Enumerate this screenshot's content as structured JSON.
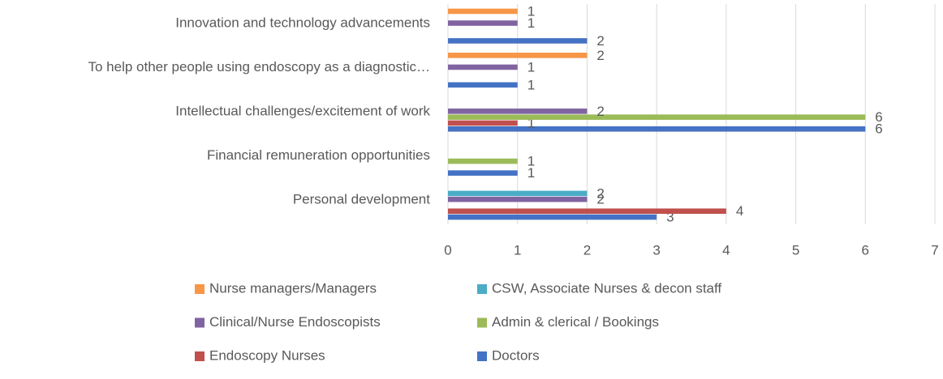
{
  "chart_data": {
    "type": "barh",
    "categories": [
      "Innovation and technology advancements",
      "To help other people using endoscopy as a diagnostic…",
      "Intellectual challenges/excitement of work",
      "Financial remuneration opportunities",
      "Personal development"
    ],
    "series": [
      {
        "name": "Doctors",
        "color": "#4472c4",
        "values": [
          2,
          1,
          6,
          1,
          3
        ]
      },
      {
        "name": "Endoscopy Nurses",
        "color": "#c0504d",
        "values": [
          null,
          null,
          1,
          null,
          4
        ]
      },
      {
        "name": "Admin & clerical / Bookings",
        "color": "#9bbb59",
        "values": [
          null,
          null,
          6,
          1,
          null
        ]
      },
      {
        "name": "Clinical/Nurse Endoscopists",
        "color": "#8064a2",
        "values": [
          1,
          1,
          2,
          null,
          2
        ]
      },
      {
        "name": "CSW, Associate Nurses & decon staff",
        "color": "#4bacc6",
        "values": [
          null,
          null,
          null,
          null,
          2
        ]
      },
      {
        "name": "Nurse managers/Managers",
        "color": "#f79646",
        "values": [
          1,
          2,
          null,
          null,
          null
        ]
      }
    ],
    "xlim": [
      0,
      7
    ],
    "xticks": [
      0,
      1,
      2,
      3,
      4,
      5,
      6,
      7
    ],
    "grid": true
  }
}
